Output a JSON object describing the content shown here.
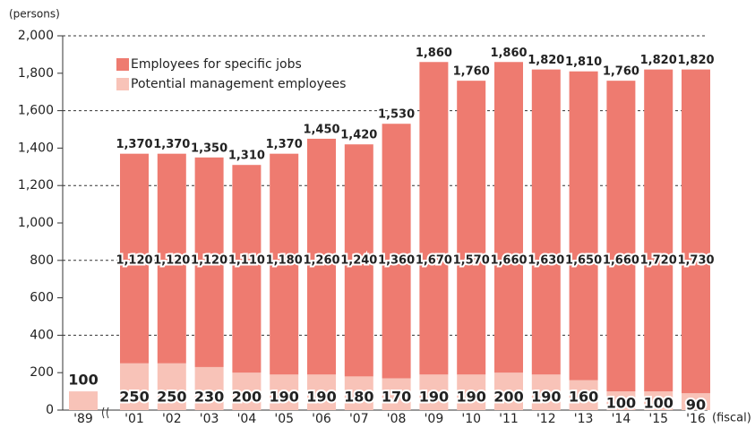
{
  "chart_data": {
    "type": "stacked_bar",
    "y_label": "(persons)",
    "x_label": "(fiscal)",
    "categories": [
      "'89",
      "'01",
      "'02",
      "'03",
      "'04",
      "'05",
      "'06",
      "'07",
      "'08",
      "'09",
      "'10",
      "'11",
      "'12",
      "'13",
      "'14",
      "'15",
      "'16"
    ],
    "series": [
      {
        "name": "Potential management employees",
        "color": "#f8c3b8",
        "values": [
          100,
          250,
          250,
          230,
          200,
          190,
          190,
          180,
          170,
          190,
          190,
          200,
          190,
          160,
          100,
          100,
          90
        ]
      },
      {
        "name": "Employees for specific jobs",
        "color": "#ee7b70",
        "values": [
          null,
          1120,
          1120,
          1120,
          1110,
          1180,
          1260,
          1240,
          1360,
          1670,
          1570,
          1660,
          1630,
          1650,
          1660,
          1720,
          1730
        ],
        "value_labels": [
          null,
          "1,120",
          "1,120",
          "1,120",
          "1,110",
          "1,180",
          "1,260",
          "1,240",
          "1,360",
          "1,670",
          "1,570",
          "1,660",
          "1,630",
          "1,650",
          "1,660",
          "1,720",
          "1,730"
        ]
      }
    ],
    "total_labels": [
      null,
      "1,370",
      "1,370",
      "1,350",
      "1,310",
      "1,370",
      "1,450",
      "1,420",
      "1,530",
      "1,860",
      "1,760",
      "1,860",
      "1,820",
      "1,810",
      "1,760",
      "1,820",
      "1,820"
    ],
    "ylim": [
      0,
      2000
    ],
    "yticks": [
      0,
      200,
      400,
      600,
      800,
      {
        "value": 1000,
        "label": "1,000"
      },
      {
        "value": 1200,
        "label": "1,200"
      },
      {
        "value": 1400,
        "label": "1,400"
      },
      {
        "value": 1600,
        "label": "1,600"
      },
      {
        "value": 1800,
        "label": "1,800"
      },
      {
        "value": 2000,
        "label": "2,000"
      }
    ],
    "grid": true
  }
}
